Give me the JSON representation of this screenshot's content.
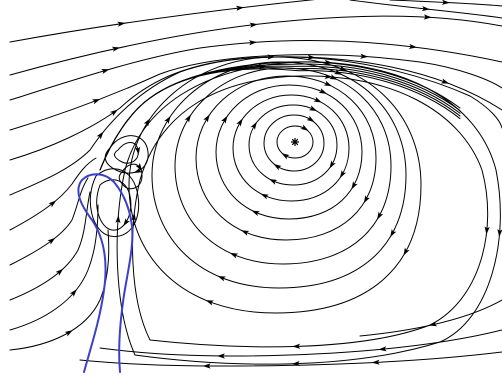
{
  "figure": {
    "description_labels": [],
    "colors": {
      "background": "#ffffff",
      "streamline": "#000000",
      "body_outline": "#3b40c8"
    },
    "features": {
      "main_vortex": "clockwise-recirculation",
      "center_marker": "asterisk",
      "secondary_vortices": 2,
      "free_stream_direction": "left-to-right"
    }
  }
}
